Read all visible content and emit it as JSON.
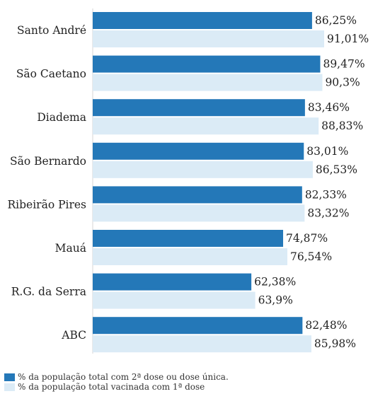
{
  "chart_data": {
    "type": "bar",
    "orientation": "horizontal",
    "categories": [
      "Santo André",
      "São Caetano",
      "Diadema",
      "São Bernardo",
      "Ribeirão Pires",
      "Mauá",
      "R.G. da Serra",
      "ABC"
    ],
    "series": [
      {
        "name": "% da população total com 2ª dose ou dose única.",
        "color": "#2478b8",
        "values": [
          86.25,
          89.47,
          83.46,
          83.01,
          82.33,
          74.87,
          62.38,
          82.48
        ],
        "labels": [
          "86,25%",
          "89,47%",
          "83,46%",
          "83,01%",
          "82,33%",
          "74,87%",
          "62,38%",
          "82,48%"
        ]
      },
      {
        "name": "% da população total vacinada com 1ª dose",
        "color": "#dbebf6",
        "values": [
          91.01,
          90.3,
          88.83,
          86.53,
          83.32,
          76.54,
          63.9,
          85.98
        ],
        "labels": [
          "91,01%",
          "90,3%",
          "88,83%",
          "86,53%",
          "83,32%",
          "76,54%",
          "63,9%",
          "85,98%"
        ]
      }
    ],
    "xlim": [
      0,
      91.01
    ],
    "grid": false,
    "legend_position": "bottom-left"
  }
}
